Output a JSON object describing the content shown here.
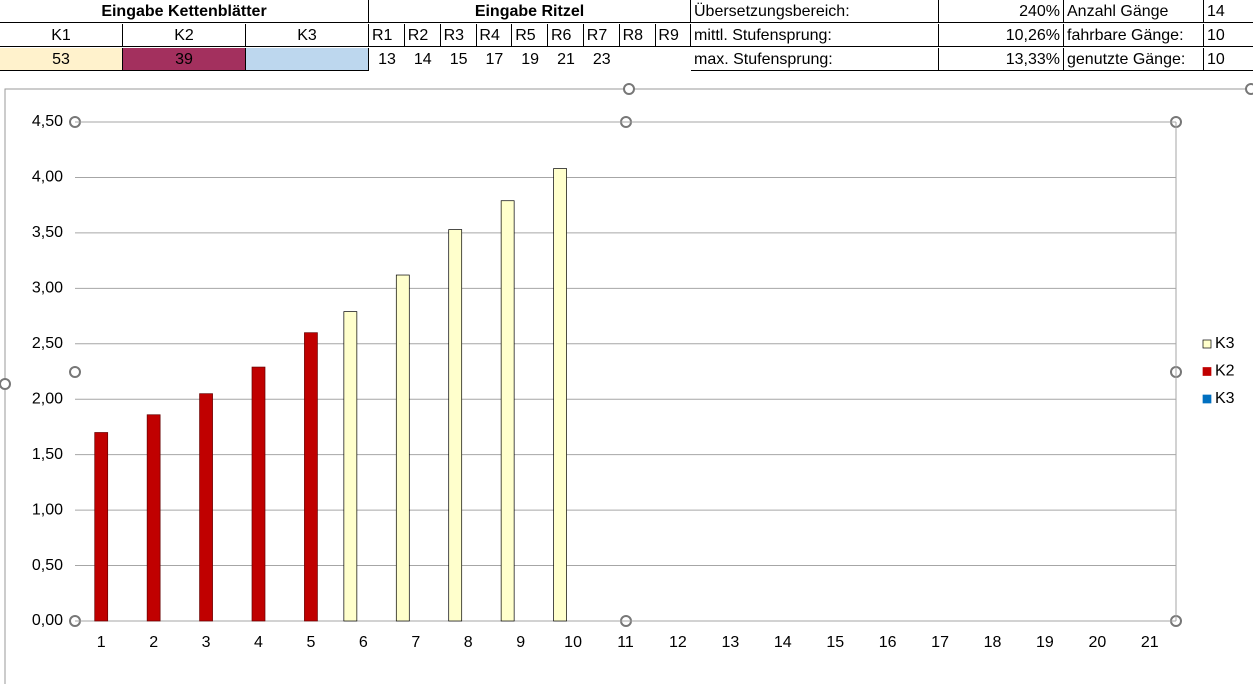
{
  "sheet": {
    "chainrings": {
      "title": "Eingabe Kettenblätter",
      "headers": [
        "K1",
        "K2",
        "K3"
      ],
      "values": [
        53,
        39
      ]
    },
    "sprockets": {
      "title": "Eingabe Ritzel",
      "headers": [
        "R1",
        "R2",
        "R3",
        "R4",
        "R5",
        "R6",
        "R7",
        "R8",
        "R9"
      ],
      "values": [
        13,
        14,
        15,
        17,
        19,
        21,
        23
      ]
    },
    "stats": [
      {
        "label": "Übersetzungsbereich:",
        "value": "240%",
        "label2": "Anzahl Gänge",
        "value2": 14
      },
      {
        "label": "mittl. Stufensprung:",
        "value": "10,26%",
        "label2": "fahrbare Gänge:",
        "value2": 10
      },
      {
        "label": "max. Stufensprung:",
        "value": "13,33%",
        "label2": "genutzte Gänge:",
        "value2": 10
      }
    ]
  },
  "chart_data": {
    "type": "bar",
    "categories": [
      "1",
      "2",
      "3",
      "4",
      "5",
      "6",
      "7",
      "8",
      "9",
      "10",
      "11",
      "12",
      "13",
      "14",
      "15",
      "16",
      "17",
      "18",
      "19",
      "20",
      "21"
    ],
    "series": [
      {
        "name": "K3",
        "color": "#ffffcc",
        "values": [
          null,
          null,
          null,
          null,
          null,
          2.79,
          3.12,
          3.53,
          3.79,
          4.08,
          null,
          null,
          null,
          null,
          null,
          null,
          null,
          null,
          null,
          null,
          null
        ]
      },
      {
        "name": "K2",
        "color": "#c00000",
        "values": [
          1.7,
          1.86,
          2.05,
          2.29,
          2.6,
          null,
          null,
          null,
          null,
          null,
          null,
          null,
          null,
          null,
          null,
          null,
          null,
          null,
          null,
          null,
          null
        ]
      },
      {
        "name": "K3",
        "color": "#0070c0",
        "values": [
          null,
          null,
          null,
          null,
          null,
          null,
          null,
          null,
          null,
          null,
          null,
          null,
          null,
          null,
          null,
          null,
          null,
          null,
          null,
          null,
          null
        ]
      }
    ],
    "ylim": [
      0,
      4.5
    ],
    "yticks": [
      {
        "value": 0,
        "label": "0,00"
      },
      {
        "value": 0.5,
        "label": "0,50"
      },
      {
        "value": 1,
        "label": "1,00"
      },
      {
        "value": 1.5,
        "label": "1,50"
      },
      {
        "value": 2,
        "label": "2,00"
      },
      {
        "value": 2.5,
        "label": "2,50"
      },
      {
        "value": 3,
        "label": "3,00"
      },
      {
        "value": 3.5,
        "label": "3,50"
      },
      {
        "value": 4,
        "label": "4,00"
      },
      {
        "value": 4.5,
        "label": "4,50"
      }
    ],
    "grid": true,
    "legend": "right"
  }
}
